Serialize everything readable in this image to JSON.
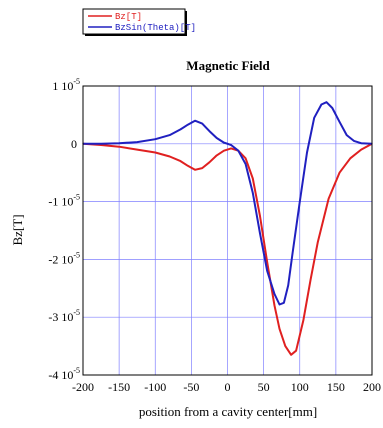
{
  "chart_data": {
    "type": "line",
    "title": "Magnetic Field",
    "xlabel": "position from a cavity center[mm]",
    "ylabel": "Bz[T]",
    "xlim": [
      -200,
      200
    ],
    "ylim": [
      -4e-05,
      1e-05
    ],
    "x_ticks": [
      "-200",
      "-150",
      "-100",
      "-50",
      "0",
      "50",
      "100",
      "150",
      "200"
    ],
    "y_ticks": [
      {
        "value": 1e-05,
        "base": "1 10",
        "exp": "-5"
      },
      {
        "value": 0,
        "base": "0",
        "exp": ""
      },
      {
        "value": -1e-05,
        "base": "-1 10",
        "exp": "-5"
      },
      {
        "value": -2e-05,
        "base": "-2 10",
        "exp": "-5"
      },
      {
        "value": -3e-05,
        "base": "-3 10",
        "exp": "-5"
      },
      {
        "value": -4e-05,
        "base": "-4 10",
        "exp": "-5"
      }
    ],
    "grid": true,
    "legend_position": "top-left outside",
    "series": [
      {
        "name": "Bz[T]",
        "color": "#e02020",
        "x": [
          -200,
          -175,
          -150,
          -125,
          -100,
          -80,
          -65,
          -55,
          -45,
          -35,
          -25,
          -15,
          -5,
          5,
          15,
          25,
          35,
          45,
          55,
          65,
          72,
          80,
          88,
          95,
          105,
          115,
          125,
          140,
          155,
          170,
          185,
          200
        ],
        "y": [
          0,
          -2e-07,
          -5e-07,
          -1e-06,
          -1.5e-06,
          -2.2e-06,
          -3e-06,
          -3.8e-06,
          -4.5e-06,
          -4.2e-06,
          -3.2e-06,
          -2e-06,
          -1.2e-06,
          -8e-07,
          -1.2e-06,
          -2.5e-06,
          -6e-06,
          -1.25e-05,
          -2.05e-05,
          -2.8e-05,
          -3.2e-05,
          -3.5e-05,
          -3.65e-05,
          -3.58e-05,
          -3.05e-05,
          -2.35e-05,
          -1.7e-05,
          -9.5e-06,
          -5e-06,
          -2.5e-06,
          -1e-06,
          0
        ]
      },
      {
        "name": "BzSin(Theta)[T]",
        "color": "#2020c0",
        "x": [
          -200,
          -175,
          -150,
          -125,
          -100,
          -80,
          -65,
          -55,
          -45,
          -35,
          -25,
          -15,
          -5,
          5,
          15,
          25,
          35,
          45,
          55,
          65,
          72,
          78,
          84,
          90,
          100,
          110,
          120,
          130,
          137,
          145,
          155,
          165,
          175,
          185,
          200
        ],
        "y": [
          0,
          0,
          1e-07,
          3e-07,
          8e-07,
          1.5e-06,
          2.5e-06,
          3.3e-06,
          4e-06,
          3.5e-06,
          2.2e-06,
          1e-06,
          2e-07,
          -2e-07,
          -1.2e-06,
          -3.5e-06,
          -8.5e-06,
          -1.55e-05,
          -2.2e-05,
          -2.6e-05,
          -2.78e-05,
          -2.75e-05,
          -2.45e-05,
          -1.9e-05,
          -1e-05,
          -1.5e-06,
          4.5e-06,
          6.8e-06,
          7.2e-06,
          6.2e-06,
          3.8e-06,
          1.5e-06,
          5e-07,
          1e-07,
          0
        ]
      }
    ]
  }
}
